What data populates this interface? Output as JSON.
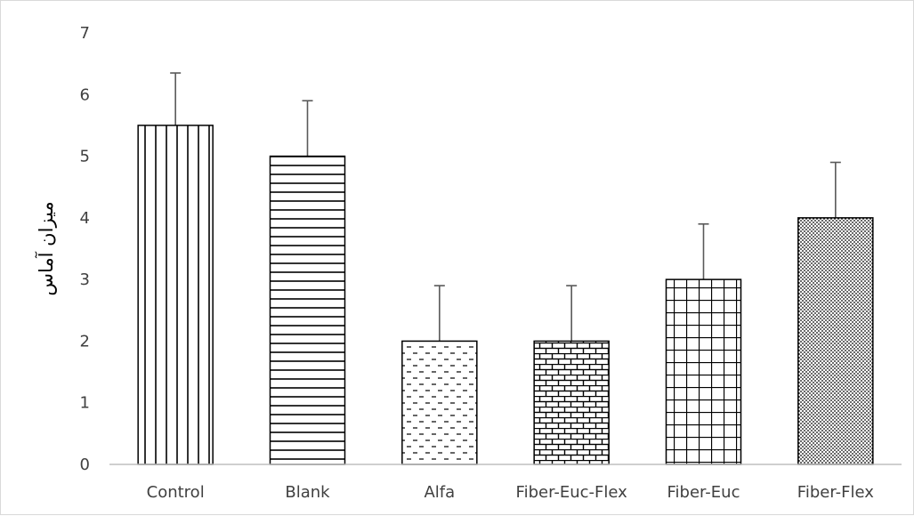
{
  "chart_data": {
    "type": "bar",
    "title": "",
    "xlabel": "",
    "ylabel": "میزان آماس",
    "categories": [
      "Control",
      "Blank",
      "Alfa",
      "Fiber-Euc-Flex",
      "Fiber-Euc",
      "Fiber-Flex"
    ],
    "values": [
      5.5,
      5.0,
      2.0,
      2.0,
      3.0,
      4.0
    ],
    "error_plus": [
      0.85,
      0.9,
      0.9,
      0.9,
      0.9,
      0.9
    ],
    "ylim": [
      0,
      7
    ],
    "yticks": [
      "0",
      "1",
      "2",
      "3",
      "4",
      "5",
      "6",
      "7"
    ],
    "grid": false,
    "legend": "none",
    "patterns": [
      "vertical-lines",
      "horizontal-lines",
      "dashes",
      "bricks",
      "grid",
      "dots"
    ],
    "colors": {
      "bar_outline": "#000000",
      "pattern": "#000000",
      "error_bar": "#595959",
      "axis": "#bfbfbf",
      "tick_text": "#404040"
    }
  }
}
